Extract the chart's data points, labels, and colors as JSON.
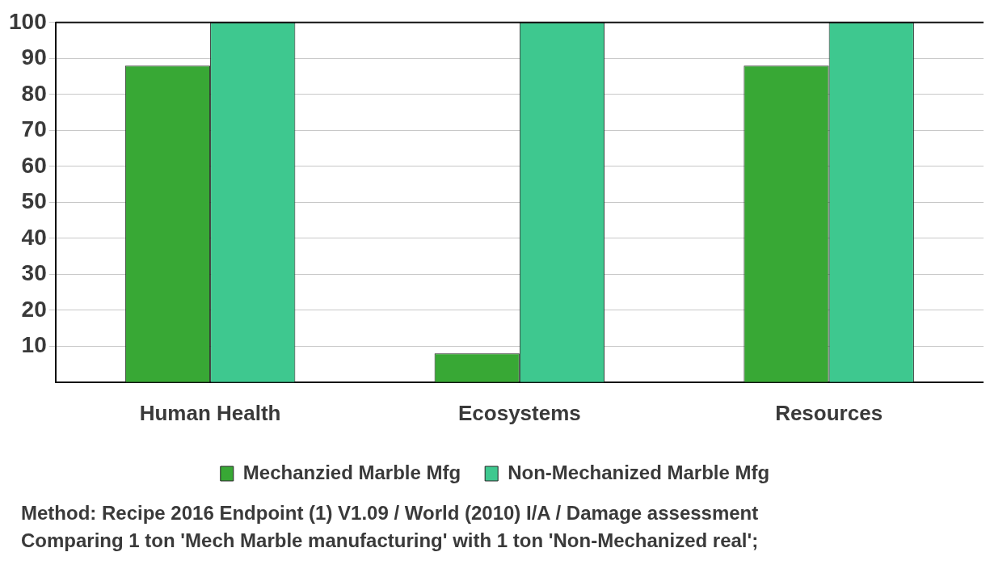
{
  "chart_data": {
    "type": "bar",
    "categories": [
      "Human Health",
      "Ecosystems",
      "Resources"
    ],
    "series": [
      {
        "name": "Mechanzied Marble Mfg",
        "color": "#38a835",
        "values": [
          88,
          8,
          88
        ]
      },
      {
        "name": "Non-Mechanized Marble Mfg",
        "color": "#3ec88f",
        "values": [
          100,
          100,
          100
        ]
      }
    ],
    "ylim": [
      0,
      100
    ],
    "yticks": [
      10,
      20,
      30,
      40,
      50,
      60,
      70,
      80,
      90,
      100
    ],
    "grid": "y",
    "legend": "bottom",
    "annotations": [
      "Method: Recipe 2016 Endpoint (1) V1.09 / World (2010) I/A / Damage assessment",
      "Comparing 1 ton 'Mech Marble manufacturing' with 1 ton 'Non-Mechanized real';"
    ]
  }
}
